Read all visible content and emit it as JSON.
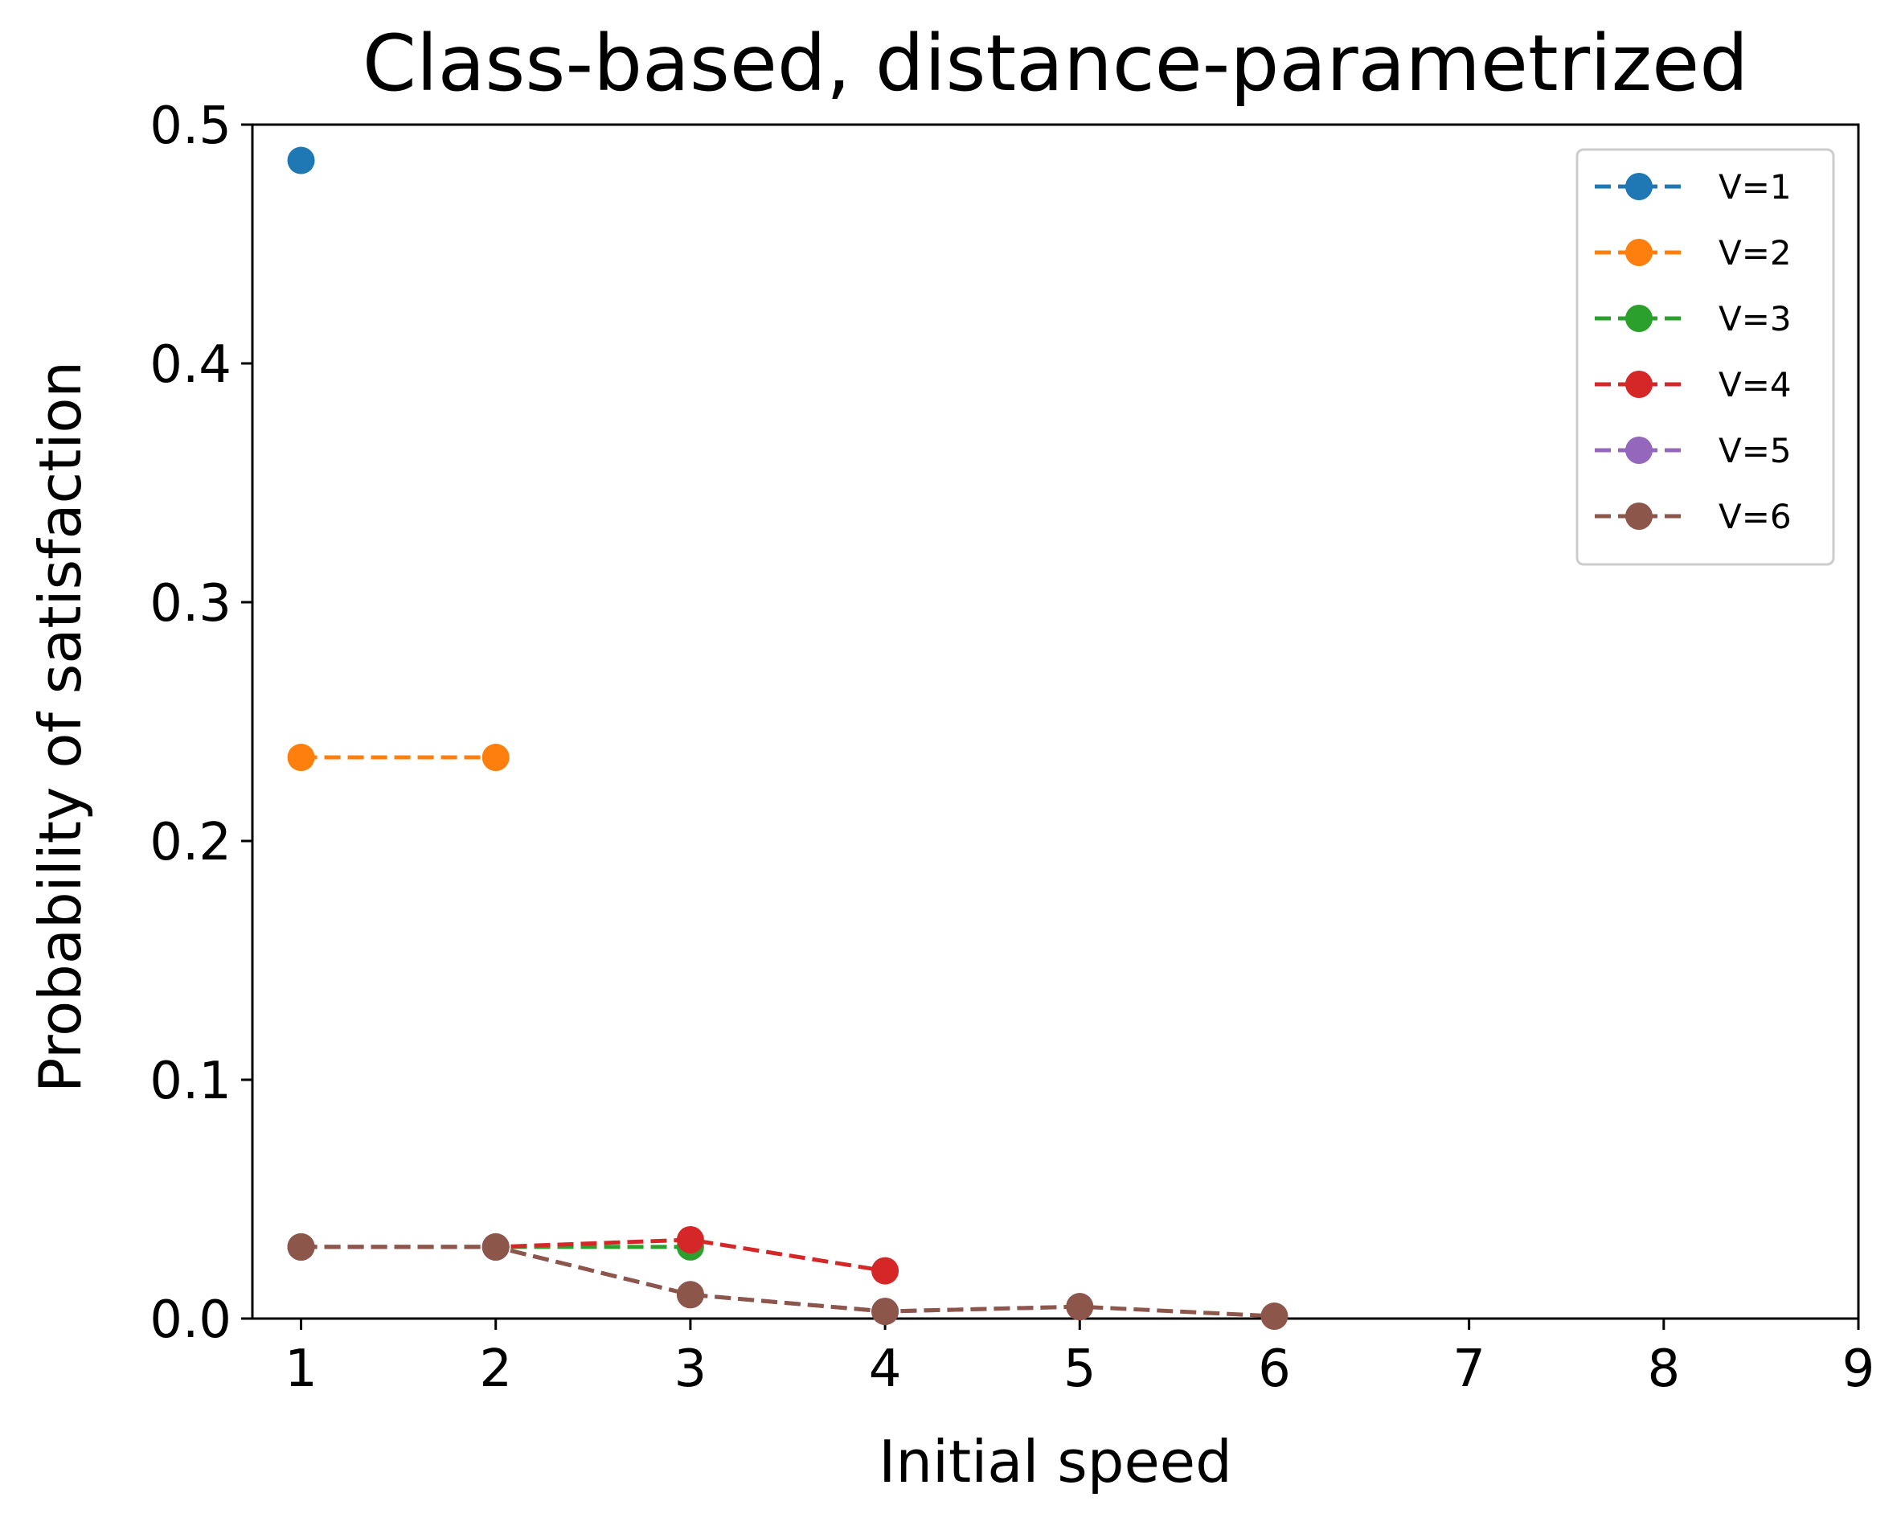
{
  "chart_data": {
    "type": "line",
    "title": "Class-based, distance-parametrized",
    "xlabel": "Initial speed",
    "ylabel": "Probability of satisfaction",
    "xlim": [
      0.75,
      9
    ],
    "ylim": [
      0,
      0.5
    ],
    "xticks": [
      1,
      2,
      3,
      4,
      5,
      6,
      7,
      8,
      9
    ],
    "yticks": [
      0.0,
      0.1,
      0.2,
      0.3,
      0.4,
      0.5
    ],
    "xtick_labels": [
      "1",
      "2",
      "3",
      "4",
      "5",
      "6",
      "7",
      "8",
      "9"
    ],
    "ytick_labels": [
      "0.0",
      "0.1",
      "0.2",
      "0.3",
      "0.4",
      "0.5"
    ],
    "grid": false,
    "legend_position": "top-right",
    "line_style": "dashed",
    "series": [
      {
        "name": "V=1",
        "color": "#1f77b4",
        "x": [
          1
        ],
        "y": [
          0.485
        ]
      },
      {
        "name": "V=2",
        "color": "#ff7f0e",
        "x": [
          1,
          2
        ],
        "y": [
          0.235,
          0.235
        ]
      },
      {
        "name": "V=3",
        "color": "#2ca02c",
        "x": [
          1,
          2,
          3
        ],
        "y": [
          0.03,
          0.03,
          0.03
        ]
      },
      {
        "name": "V=4",
        "color": "#d62728",
        "x": [
          1,
          2,
          3,
          4
        ],
        "y": [
          0.03,
          0.03,
          0.033,
          0.02
        ]
      },
      {
        "name": "V=5",
        "color": "#9467bd",
        "x": [
          1,
          2,
          3,
          4,
          5
        ],
        "y": [
          0.03,
          0.03,
          0.01,
          0.003,
          0.005
        ]
      },
      {
        "name": "V=6",
        "color": "#8c564b",
        "x": [
          1,
          2,
          3,
          4,
          5,
          6
        ],
        "y": [
          0.03,
          0.03,
          0.01,
          0.003,
          0.005,
          0.001
        ]
      }
    ]
  }
}
